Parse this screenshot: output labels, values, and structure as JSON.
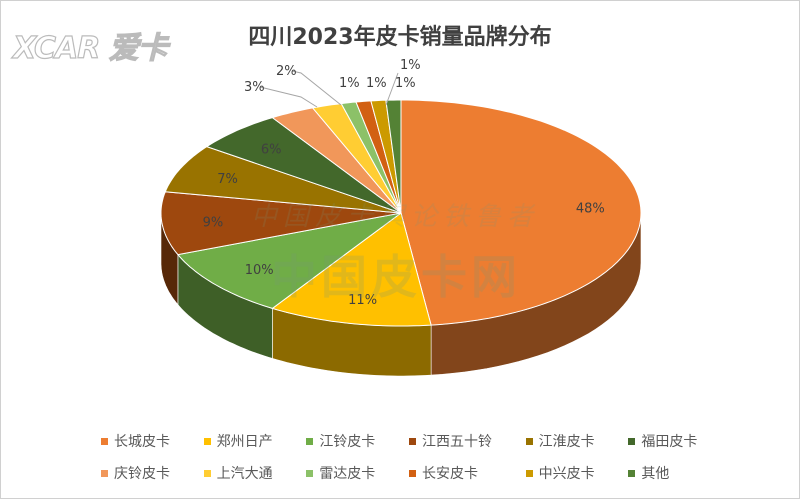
{
  "logo_text": "XCAR 爱卡",
  "watermark": "中国皮卡网",
  "watermark2": "中国皮卡舆论铁鲁者",
  "chart_data": {
    "type": "pie",
    "style": "3d",
    "title": "四川2023年皮卡销量品牌分布",
    "legend_position": "bottom",
    "categories": [
      "长城皮卡",
      "郑州日产",
      "江铃皮卡",
      "江西五十铃",
      "江淮皮卡",
      "福田皮卡",
      "庆铃皮卡",
      "上汽大通",
      "雷达皮卡",
      "长安皮卡",
      "中兴皮卡",
      "其他"
    ],
    "values": [
      48,
      11,
      10,
      9,
      7,
      6,
      3,
      2,
      1,
      1,
      1,
      1
    ],
    "labels": [
      "48%",
      "11%",
      "10%",
      "9%",
      "7%",
      "6%",
      "3%",
      "2%",
      "1%",
      "1%",
      "1%",
      "1%"
    ],
    "colors": [
      "#ED7D31",
      "#FFC000",
      "#70AD47",
      "#9E480E",
      "#997300",
      "#43682B",
      "#F1975A",
      "#FFCD33",
      "#8CC168",
      "#D26012",
      "#CC9A00",
      "#548235"
    ]
  }
}
